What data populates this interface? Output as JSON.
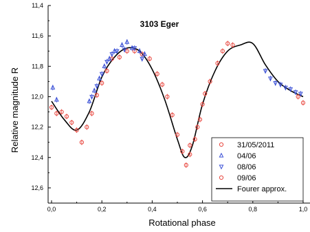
{
  "chart_data": {
    "type": "scatter",
    "title": "3103 Eger",
    "xlabel": "Rotational phase",
    "ylabel": "Relative magnitude R",
    "xlim": [
      0.0,
      1.0
    ],
    "ylim": [
      11.4,
      12.7
    ],
    "y_inverted": true,
    "x_ticks": [
      "0,0",
      "0,2",
      "0,4",
      "0,6",
      "0,8",
      "1,0"
    ],
    "y_ticks": [
      "11,4",
      "11,6",
      "11,8",
      "12,0",
      "12,2",
      "12,4",
      "12,6"
    ],
    "grid": false,
    "legend_position": "bottom-right",
    "series": [
      {
        "name": "31/05/2011",
        "marker": "circle",
        "color": "#e8473f",
        "points": [
          [
            0.04,
            12.1
          ],
          [
            0.06,
            12.13
          ],
          [
            0.08,
            12.17
          ],
          [
            0.1,
            12.22
          ],
          [
            0.12,
            12.3
          ],
          [
            0.14,
            12.2
          ],
          [
            0.16,
            12.11
          ],
          [
            0.18,
            11.99
          ],
          [
            0.2,
            11.91
          ],
          [
            0.22,
            11.83
          ],
          [
            0.24,
            11.75
          ],
          [
            0.27,
            11.74
          ],
          [
            0.3,
            11.7
          ],
          [
            0.33,
            11.7
          ],
          [
            0.36,
            11.72
          ],
          [
            0.39,
            11.75
          ],
          [
            0.42,
            11.85
          ],
          [
            0.44,
            11.92
          ],
          [
            0.46,
            12.0
          ],
          [
            0.48,
            12.12
          ],
          [
            0.5,
            12.25
          ],
          [
            0.52,
            12.36
          ],
          [
            0.535,
            12.45
          ],
          [
            0.55,
            12.38
          ],
          [
            0.57,
            12.28
          ],
          [
            0.59,
            12.15
          ],
          [
            0.61,
            11.98
          ]
        ]
      },
      {
        "name": "04/06",
        "marker": "triangle-up",
        "color": "#3b50d6",
        "points": [
          [
            0.005,
            11.94
          ],
          [
            0.02,
            12.02
          ],
          [
            0.15,
            12.03
          ],
          [
            0.17,
            11.96
          ],
          [
            0.19,
            11.88
          ],
          [
            0.21,
            11.8
          ],
          [
            0.23,
            11.75
          ],
          [
            0.25,
            11.7
          ],
          [
            0.28,
            11.66
          ],
          [
            0.3,
            11.64
          ],
          [
            0.32,
            11.68
          ],
          [
            0.35,
            11.7
          ],
          [
            0.37,
            11.72
          ]
        ]
      },
      {
        "name": "08/06",
        "marker": "triangle-down",
        "color": "#3b50d6",
        "points": [
          [
            0.16,
            12.0
          ],
          [
            0.18,
            11.93
          ],
          [
            0.2,
            11.85
          ],
          [
            0.22,
            11.77
          ],
          [
            0.24,
            11.72
          ],
          [
            0.26,
            11.7
          ],
          [
            0.29,
            11.69
          ],
          [
            0.33,
            11.68
          ],
          [
            0.36,
            11.75
          ],
          [
            0.85,
            11.83
          ],
          [
            0.87,
            11.88
          ],
          [
            0.89,
            11.91
          ],
          [
            0.91,
            11.92
          ],
          [
            0.93,
            11.94
          ],
          [
            0.95,
            11.95
          ],
          [
            0.97,
            11.97
          ],
          [
            0.99,
            11.98
          ]
        ]
      },
      {
        "name": "09/06",
        "marker": "circle",
        "color": "#e8473f",
        "points": [
          [
            0.0,
            12.07
          ],
          [
            0.02,
            12.11
          ],
          [
            0.55,
            12.32
          ],
          [
            0.58,
            12.2
          ],
          [
            0.6,
            12.05
          ],
          [
            0.63,
            11.9
          ],
          [
            0.66,
            11.78
          ],
          [
            0.68,
            11.7
          ],
          [
            0.7,
            11.65
          ],
          [
            0.72,
            11.66
          ],
          [
            0.98,
            12.0
          ],
          [
            1.0,
            12.04
          ]
        ]
      },
      {
        "name": "Fourer approx.",
        "type": "line",
        "color": "#000000",
        "points": [
          [
            0.0,
            12.03
          ],
          [
            0.05,
            12.15
          ],
          [
            0.1,
            12.22
          ],
          [
            0.15,
            12.1
          ],
          [
            0.2,
            11.87
          ],
          [
            0.25,
            11.74
          ],
          [
            0.3,
            11.68
          ],
          [
            0.35,
            11.7
          ],
          [
            0.4,
            11.82
          ],
          [
            0.45,
            12.02
          ],
          [
            0.5,
            12.28
          ],
          [
            0.53,
            12.4
          ],
          [
            0.56,
            12.32
          ],
          [
            0.6,
            12.05
          ],
          [
            0.65,
            11.83
          ],
          [
            0.7,
            11.7
          ],
          [
            0.75,
            11.66
          ],
          [
            0.8,
            11.65
          ],
          [
            0.85,
            11.79
          ],
          [
            0.9,
            11.9
          ],
          [
            0.95,
            11.96
          ],
          [
            1.0,
            12.0
          ]
        ]
      }
    ]
  }
}
